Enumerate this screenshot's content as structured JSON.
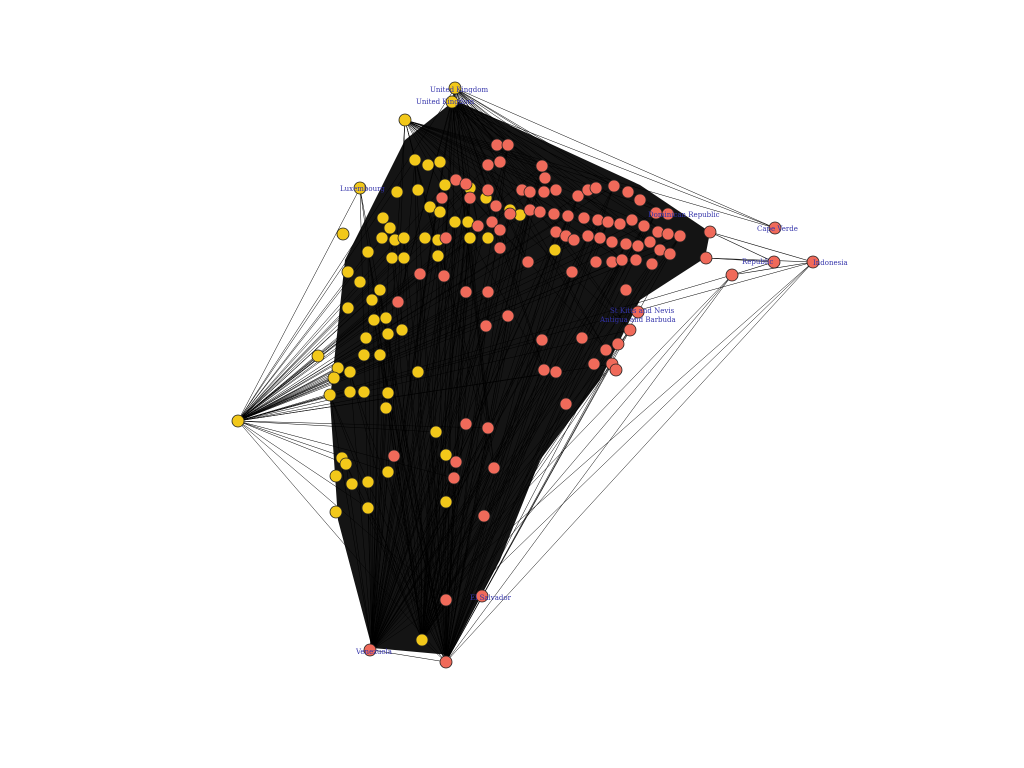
{
  "graph": {
    "colors": {
      "background": "#ffffff",
      "edge": "#000000",
      "group_a": "#f2c81a",
      "group_b": "#f06a5a",
      "node_stroke": "#222222",
      "label": "#3333aa"
    },
    "labels": {
      "uk": "United Kingdom",
      "uk2": "United Kingdom",
      "lux": "Luxembourg",
      "dom": "Dominican Republic",
      "cv": "Cape Verde",
      "rep": "Republic",
      "indo": "Indonesia",
      "kitts": "St Kitts and Nevis",
      "antigua": "Antigua and Barbuda",
      "ven": "Venezuela",
      "sal": "El Salvador"
    }
  }
}
